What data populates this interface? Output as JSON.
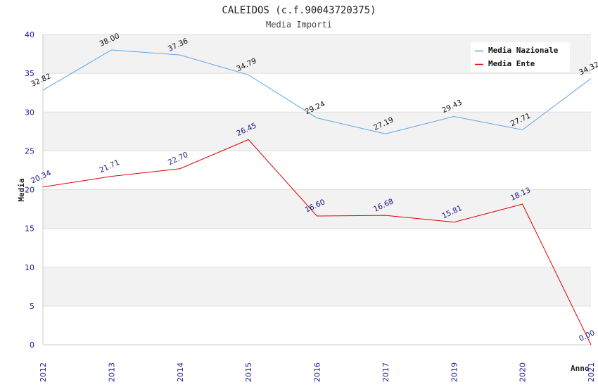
{
  "chart_data": {
    "type": "line",
    "title": "CALEIDOS (c.f.90043720375)",
    "subtitle": "Media Importi",
    "xlabel": "Anno",
    "ylabel": "Media",
    "ylim": [
      0,
      40
    ],
    "yticks": [
      0,
      5,
      10,
      15,
      20,
      25,
      30,
      35,
      40
    ],
    "categories": [
      "2012",
      "2013",
      "2014",
      "2015",
      "2016",
      "2017",
      "2019",
      "2020",
      "2021"
    ],
    "legend_position": "top-right",
    "series": [
      {
        "name": "Media Nazionale",
        "color": "#5da5e8",
        "label_color": "#111111",
        "values": [
          32.82,
          38.0,
          37.36,
          34.79,
          29.24,
          27.19,
          29.43,
          27.71,
          34.32
        ],
        "labels": [
          "32.82",
          "38.00",
          "37.36",
          "34.79",
          "29.24",
          "27.19",
          "29.43",
          "27.71",
          "34.32"
        ]
      },
      {
        "name": "Media Ente",
        "color": "#e00000",
        "label_color": "#1a1a80",
        "values": [
          20.34,
          21.71,
          22.7,
          26.45,
          16.6,
          16.68,
          15.81,
          18.13,
          0.0
        ],
        "labels": [
          "20.34",
          "21.71",
          "22.70",
          "26.45",
          "16.60",
          "16.68",
          "15.81",
          "18.13",
          "0.00"
        ]
      }
    ],
    "grid": true
  }
}
